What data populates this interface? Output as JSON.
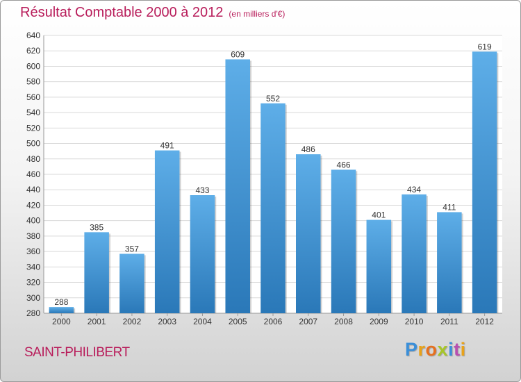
{
  "header": {
    "title": "Résultat Comptable 2000 à 2012",
    "subtitle": "(en milliers d'€)"
  },
  "footer": {
    "location": "SAINT-PHILIBERT"
  },
  "logo": {
    "letters": [
      "P",
      "r",
      "o",
      "x",
      "i",
      "t",
      "i"
    ],
    "colors": [
      "#3a8fd9",
      "#e8a21a",
      "#e6701f",
      "#a7c62a",
      "#3a8fd9",
      "#b84fb0",
      "#e8a21a"
    ]
  },
  "colors": {
    "bar_light": "#5eaee8",
    "bar_dark": "#2a78b8",
    "title": "#b81c5a",
    "plot_bg": "#ffffff"
  },
  "chart_data": {
    "type": "bar",
    "title": "Résultat Comptable 2000 à 2012",
    "subtitle": "(en milliers d'€)",
    "xlabel": "",
    "ylabel": "",
    "categories": [
      "2000",
      "2001",
      "2002",
      "2003",
      "2004",
      "2005",
      "2006",
      "2007",
      "2008",
      "2009",
      "2010",
      "2011",
      "2012"
    ],
    "values": [
      288,
      385,
      357,
      491,
      433,
      609,
      552,
      486,
      466,
      401,
      434,
      411,
      619
    ],
    "ylim": [
      280,
      640
    ],
    "ytick_step": 20,
    "grid": true,
    "legend": "none"
  }
}
